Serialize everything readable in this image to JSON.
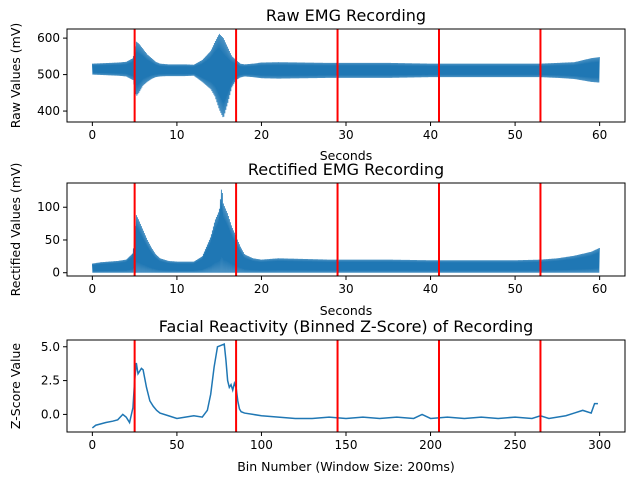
{
  "chart_data": [
    {
      "type": "line",
      "title": "Raw EMG Recording",
      "xlabel": "Seconds",
      "ylabel": "Raw Values (mV)",
      "xlim": [
        -3,
        63
      ],
      "ylim": [
        370,
        625
      ],
      "xticks": [
        0,
        10,
        20,
        30,
        40,
        50,
        60
      ],
      "yticks": [
        400,
        500,
        600
      ],
      "grid": false,
      "line_color": "#1f77b4",
      "marker_color": "#ff0000",
      "markers_x": [
        5,
        17,
        29,
        41,
        53
      ],
      "series": [
        {
          "band_x": [
            0,
            1,
            2,
            3,
            4,
            4.8,
            5.2,
            5.5,
            6,
            6.5,
            7,
            7.5,
            8,
            9,
            10,
            11,
            12,
            13,
            14,
            14.5,
            15,
            15.5,
            16,
            16.5,
            17,
            17.5,
            18,
            19,
            20,
            22,
            25,
            28,
            31,
            35,
            40,
            45,
            50,
            53,
            55,
            57,
            59,
            60
          ],
          "upper": [
            530,
            531,
            532,
            533,
            535,
            545,
            590,
            585,
            570,
            555,
            545,
            535,
            530,
            528,
            528,
            528,
            527,
            540,
            565,
            590,
            612,
            600,
            575,
            550,
            540,
            530,
            528,
            530,
            533,
            534,
            533,
            532,
            532,
            532,
            530,
            530,
            530,
            530,
            532,
            534,
            545,
            548
          ],
          "lower": [
            500,
            499,
            498,
            497,
            495,
            485,
            440,
            450,
            470,
            480,
            488,
            493,
            495,
            496,
            496,
            496,
            497,
            480,
            460,
            440,
            405,
            380,
            420,
            465,
            485,
            492,
            495,
            493,
            490,
            489,
            490,
            491,
            491,
            491,
            493,
            493,
            493,
            493,
            491,
            488,
            480,
            478
          ]
        }
      ]
    },
    {
      "type": "line",
      "title": "Rectified EMG Recording",
      "xlabel": "Seconds",
      "ylabel": "Rectified Values (mV)",
      "xlim": [
        -3,
        63
      ],
      "ylim": [
        -5,
        137
      ],
      "xticks": [
        0,
        10,
        20,
        30,
        40,
        50,
        60
      ],
      "yticks": [
        0,
        50,
        100
      ],
      "grid": false,
      "line_color": "#1f77b4",
      "marker_color": "#ff0000",
      "markers_x": [
        5,
        17,
        29,
        41,
        53
      ],
      "series": [
        {
          "band_x": [
            0,
            1,
            2,
            3,
            4,
            4.8,
            5.2,
            5.5,
            6,
            6.5,
            7,
            7.5,
            8,
            9,
            10,
            11,
            12,
            13,
            14,
            14.5,
            15,
            15.3,
            15.5,
            16,
            16.5,
            17,
            17.5,
            18,
            19,
            20,
            22,
            25,
            28,
            31,
            35,
            40,
            45,
            50,
            53,
            55,
            57,
            59,
            60
          ],
          "upper": [
            14,
            16,
            17,
            18,
            20,
            30,
            88,
            80,
            65,
            50,
            38,
            28,
            22,
            18,
            17,
            17,
            17,
            25,
            55,
            80,
            95,
            132,
            105,
            90,
            70,
            55,
            40,
            28,
            22,
            20,
            22,
            21,
            20,
            20,
            20,
            19,
            19,
            19,
            20,
            22,
            26,
            32,
            38
          ],
          "lower": [
            0,
            0,
            0,
            0,
            0,
            0,
            0,
            0,
            0,
            0,
            0,
            0,
            0,
            0,
            0,
            0,
            0,
            0,
            0,
            0,
            0,
            0,
            0,
            0,
            0,
            0,
            0,
            0,
            0,
            0,
            0,
            0,
            0,
            0,
            0,
            0,
            0,
            0,
            0,
            0,
            0,
            0,
            0
          ]
        }
      ]
    },
    {
      "type": "line",
      "title": "Facial Reactivity (Binned Z-Score) of Recording",
      "xlabel": "Bin Number (Window Size: 200ms)",
      "ylabel": "Z-Score Value",
      "xlim": [
        -15,
        315
      ],
      "ylim": [
        -1.3,
        5.5
      ],
      "xticks": [
        0,
        50,
        100,
        150,
        200,
        250,
        300
      ],
      "yticks": [
        0.0,
        2.5,
        5.0
      ],
      "ytick_labels": [
        "0.0",
        "2.5",
        "5.0"
      ],
      "grid": false,
      "line_color": "#1f77b4",
      "marker_color": "#ff0000",
      "markers_x": [
        25,
        85,
        145,
        205,
        265
      ],
      "series": [
        {
          "x": [
            0,
            2,
            5,
            8,
            12,
            15,
            18,
            20,
            22,
            24,
            25,
            26,
            27,
            28,
            29,
            30,
            32,
            34,
            36,
            38,
            40,
            45,
            50,
            55,
            60,
            65,
            68,
            70,
            72,
            74,
            76,
            78,
            79,
            80,
            81,
            82,
            83,
            84,
            85,
            86,
            87,
            88,
            90,
            95,
            100,
            110,
            120,
            130,
            140,
            150,
            160,
            170,
            180,
            190,
            195,
            200,
            210,
            220,
            230,
            240,
            250,
            260,
            265,
            270,
            280,
            285,
            290,
            295,
            297,
            299
          ],
          "y": [
            -1.0,
            -0.8,
            -0.7,
            -0.6,
            -0.5,
            -0.4,
            0.0,
            -0.2,
            -0.6,
            0.5,
            2.5,
            3.8,
            3.0,
            3.2,
            3.4,
            3.3,
            2.0,
            1.0,
            0.6,
            0.3,
            0.1,
            -0.1,
            -0.3,
            -0.2,
            -0.1,
            -0.2,
            0.3,
            1.5,
            3.5,
            5.0,
            5.1,
            5.2,
            4.0,
            2.5,
            2.0,
            2.2,
            1.8,
            2.3,
            2.0,
            1.0,
            0.4,
            0.2,
            0.1,
            0.0,
            -0.1,
            -0.2,
            -0.3,
            -0.3,
            -0.2,
            -0.3,
            -0.2,
            -0.3,
            -0.2,
            -0.3,
            0.0,
            -0.3,
            -0.2,
            -0.3,
            -0.2,
            -0.3,
            -0.2,
            -0.3,
            -0.1,
            -0.3,
            -0.1,
            0.1,
            0.3,
            0.1,
            0.8,
            0.8
          ]
        }
      ]
    }
  ]
}
